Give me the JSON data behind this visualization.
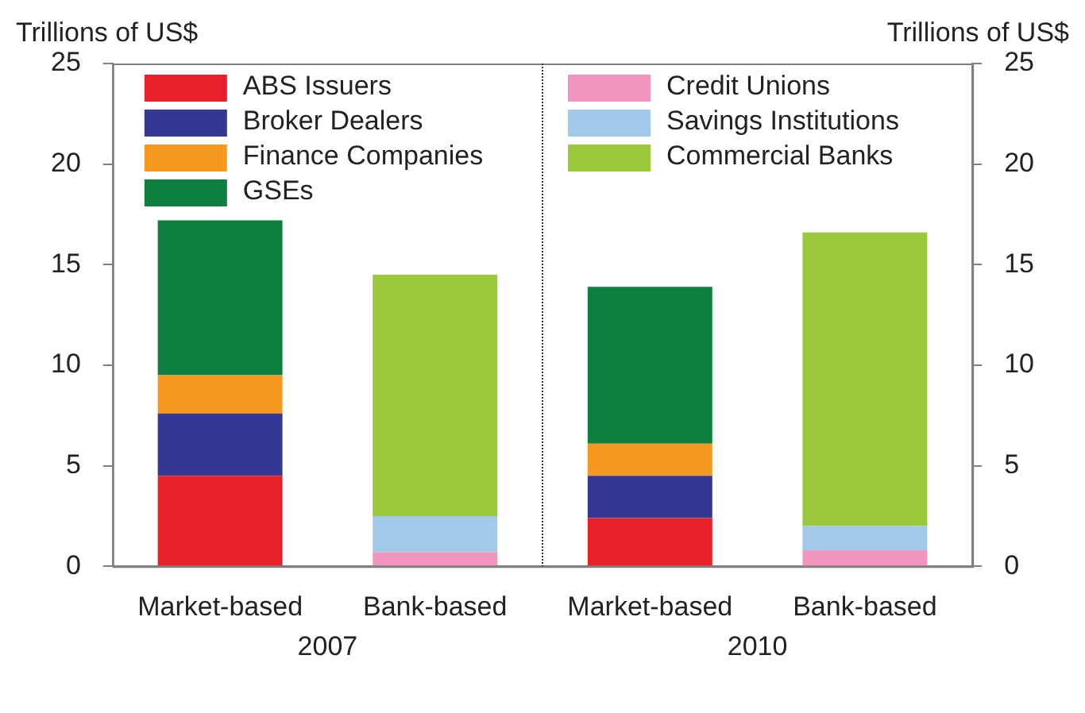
{
  "chart_data": {
    "type": "bar",
    "stacked": true,
    "categories": [
      "Market-based",
      "Bank-based",
      "Market-based",
      "Bank-based"
    ],
    "annotations": [
      "2007",
      "2010"
    ],
    "ylabel": "Trillions of US$",
    "y2label": "Trillions of US$",
    "ylim": [
      0,
      25
    ],
    "yticks": [
      0,
      5,
      10,
      15,
      20,
      25
    ],
    "y2lim": [
      0,
      25
    ],
    "y2ticks": [
      0,
      5,
      10,
      15,
      20,
      25
    ],
    "grid": false,
    "legend": "top",
    "series": [
      {
        "name": "ABS Issuers",
        "color": "#e8202a",
        "values": [
          4.5,
          null,
          2.4,
          null
        ]
      },
      {
        "name": "Broker Dealers",
        "color": "#343894",
        "values": [
          3.1,
          null,
          2.1,
          null
        ]
      },
      {
        "name": "Finance Companies",
        "color": "#f7991f",
        "values": [
          1.9,
          null,
          1.6,
          null
        ]
      },
      {
        "name": "GSEs",
        "color": "#0f7f3f",
        "values": [
          7.7,
          null,
          7.8,
          null
        ]
      },
      {
        "name": "Credit Unions",
        "color": "#f096bf",
        "values": [
          null,
          0.7,
          null,
          0.8
        ]
      },
      {
        "name": "Savings Institutions",
        "color": "#a0c9ea",
        "values": [
          null,
          1.8,
          null,
          1.2
        ]
      },
      {
        "name": "Commercial Banks",
        "color": "#9bc93c",
        "values": [
          null,
          12.0,
          null,
          14.6
        ]
      }
    ]
  }
}
